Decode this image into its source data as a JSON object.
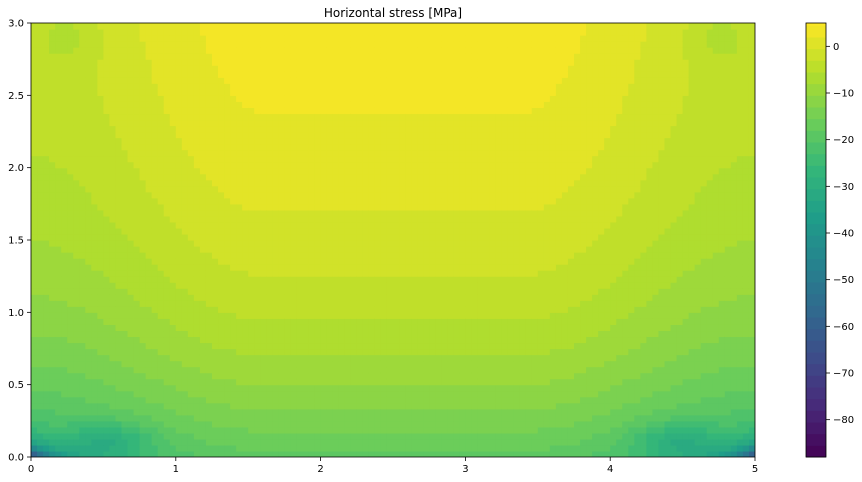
{
  "chart_data": {
    "type": "heatmap",
    "title": "Horizontal stress [MPa]",
    "xlabel": "",
    "ylabel": "",
    "xlim": [
      0,
      5
    ],
    "ylim": [
      0,
      3
    ],
    "x_ticks": [
      0,
      1,
      2,
      3,
      4,
      5
    ],
    "x_tick_labels": [
      "0",
      "1",
      "2",
      "3",
      "4",
      "5"
    ],
    "y_ticks": [
      0.0,
      0.5,
      1.0,
      1.5,
      2.0,
      2.5,
      3.0
    ],
    "y_tick_labels": [
      "0.0",
      "0.5",
      "1.0",
      "1.5",
      "2.0",
      "2.5",
      "3.0"
    ],
    "colormap": "viridis",
    "colorbar": {
      "vmin": -88,
      "vmax": 5,
      "ticks": [
        0,
        -10,
        -20,
        -30,
        -40,
        -50,
        -60,
        -70,
        -80
      ],
      "tick_labels": [
        "0",
        "−10",
        "−20",
        "−30",
        "−40",
        "−50",
        "−60",
        "−70",
        "−80"
      ]
    },
    "grid": false,
    "field_samples": {
      "description_note": "",
      "y": [
        3.0,
        2.7,
        2.3,
        2.0,
        1.7,
        1.4,
        1.1,
        0.8,
        0.5,
        0.3,
        0.1,
        0.0
      ],
      "center_x_2_5": [
        4,
        2,
        -3,
        -6,
        -9,
        -12,
        -15,
        -18,
        -21,
        -23,
        -24,
        -24
      ],
      "edge_x_0_5": [
        -3,
        -3,
        -4,
        -6,
        -8,
        -10,
        -12,
        -14,
        -17,
        -20,
        -26,
        -40
      ]
    }
  }
}
